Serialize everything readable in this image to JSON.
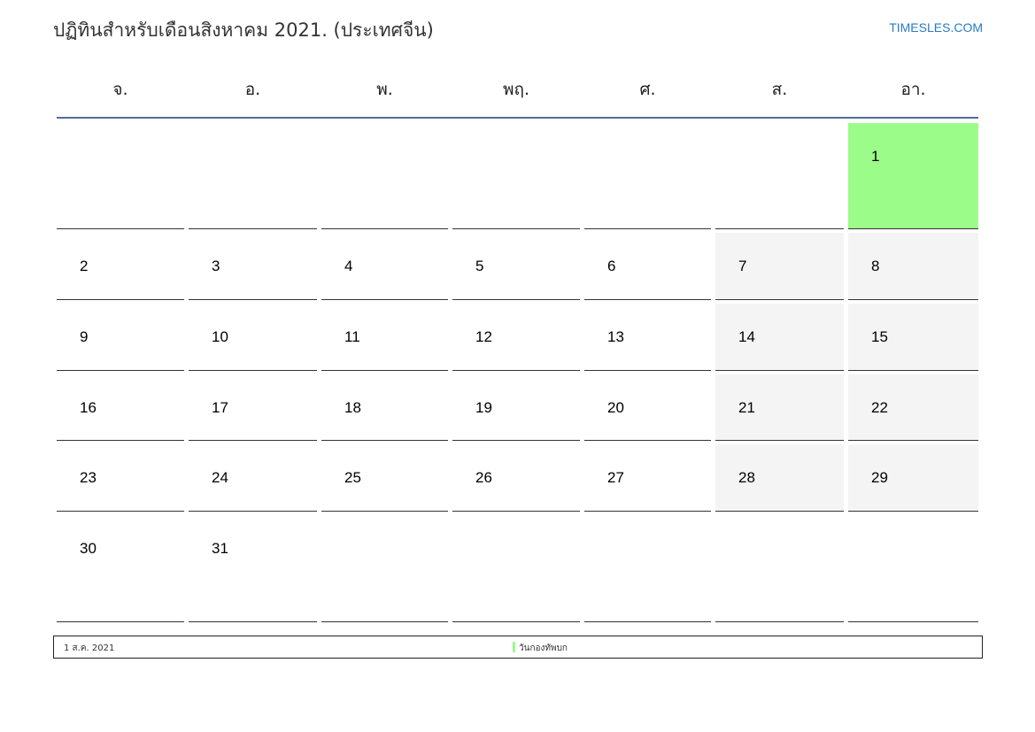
{
  "header": {
    "title": "ปฏิทินสำหรับเดือนสิงหาคม 2021. (ประเทศจีน)",
    "site": "TIMESLES.COM"
  },
  "weekdays": [
    "จ.",
    "อ.",
    "พ.",
    "พฤ.",
    "ศ.",
    "ส.",
    "อา."
  ],
  "weeks": [
    [
      null,
      null,
      null,
      null,
      null,
      null,
      1
    ],
    [
      2,
      3,
      4,
      5,
      6,
      7,
      8
    ],
    [
      9,
      10,
      11,
      12,
      13,
      14,
      15
    ],
    [
      16,
      17,
      18,
      19,
      20,
      21,
      22
    ],
    [
      23,
      24,
      25,
      26,
      27,
      28,
      29
    ],
    [
      30,
      31,
      null,
      null,
      null,
      null,
      null
    ]
  ],
  "holidays": [
    {
      "day": 1,
      "date": "1 ส.ค. 2021",
      "name": "วันกองทัพบก"
    }
  ],
  "colors": {
    "holiday": "#9cfc8a",
    "weekend": "#f4f4f4",
    "header_line": "#4e6e9b",
    "link": "#2a7ac4"
  }
}
